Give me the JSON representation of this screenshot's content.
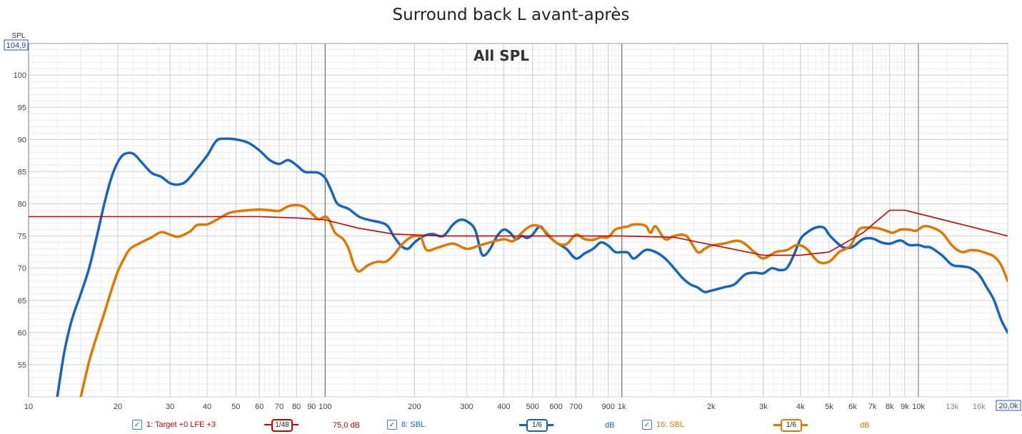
{
  "title": "Surround back L avant-après",
  "chart_data": {
    "type": "line",
    "inner_title": "All SPL",
    "ylabel": "SPL",
    "yaxis": {
      "min": 50,
      "max": 104.9,
      "top_readout": "104,9",
      "log": false
    },
    "xaxis": {
      "min": 10,
      "max": 20000,
      "log": true,
      "right_readout": "20,0k"
    },
    "yticks": [
      55,
      60,
      65,
      70,
      75,
      80,
      85,
      90,
      95,
      100
    ],
    "xticks": [
      {
        "v": 10,
        "label": "10"
      },
      {
        "v": 20,
        "label": "20"
      },
      {
        "v": 30,
        "label": "30"
      },
      {
        "v": 40,
        "label": "40"
      },
      {
        "v": 50,
        "label": "50"
      },
      {
        "v": 60,
        "label": "60"
      },
      {
        "v": 70,
        "label": "70"
      },
      {
        "v": 80,
        "label": "80"
      },
      {
        "v": 90,
        "label": "90"
      },
      {
        "v": 100,
        "label": "100"
      },
      {
        "v": 200,
        "label": "200"
      },
      {
        "v": 300,
        "label": "300"
      },
      {
        "v": 400,
        "label": "400"
      },
      {
        "v": 500,
        "label": "500"
      },
      {
        "v": 600,
        "label": "600"
      },
      {
        "v": 700,
        "label": "700"
      },
      {
        "v": 900,
        "label": "900"
      },
      {
        "v": 1000,
        "label": "1k"
      },
      {
        "v": 2000,
        "label": "2k"
      },
      {
        "v": 3000,
        "label": "3k"
      },
      {
        "v": 4000,
        "label": "4k"
      },
      {
        "v": 5000,
        "label": "5k"
      },
      {
        "v": 6000,
        "label": "6k"
      },
      {
        "v": 7000,
        "label": "7k"
      },
      {
        "v": 8000,
        "label": "8k"
      },
      {
        "v": 9000,
        "label": "9k"
      },
      {
        "v": 10000,
        "label": "10k"
      },
      {
        "v": 13000,
        "label": "13k",
        "minor": true
      },
      {
        "v": 16000,
        "label": "16k",
        "minor": true
      }
    ],
    "series": [
      {
        "name": "1: Target +0 LFE +3",
        "color": "#cc0000",
        "smoothing": "1/48",
        "offset": "75,0 dB",
        "width": 1.6,
        "points": [
          [
            10,
            78
          ],
          [
            20,
            78
          ],
          [
            40,
            78
          ],
          [
            60,
            78
          ],
          [
            80,
            77.8
          ],
          [
            100,
            77.5
          ],
          [
            130,
            76.2
          ],
          [
            170,
            75.3
          ],
          [
            250,
            75
          ],
          [
            500,
            75
          ],
          [
            1000,
            75
          ],
          [
            1500,
            74.8
          ],
          [
            3000,
            72
          ],
          [
            4000,
            72
          ],
          [
            5000,
            72.5
          ],
          [
            6500,
            75.5
          ],
          [
            8000,
            79
          ],
          [
            9000,
            79
          ],
          [
            20000,
            75
          ]
        ]
      },
      {
        "name": "8: SBL",
        "color": "#1565c0",
        "smoothing": "1/6",
        "offset": "dB",
        "width": 3.5,
        "points": [
          [
            12.5,
            50
          ],
          [
            13.2,
            57
          ],
          [
            14,
            62
          ],
          [
            15,
            66
          ],
          [
            16,
            70
          ],
          [
            17,
            75
          ],
          [
            18,
            80
          ],
          [
            19,
            84
          ],
          [
            20,
            86.5
          ],
          [
            21,
            87.7
          ],
          [
            22.5,
            87.8
          ],
          [
            24,
            86.5
          ],
          [
            26,
            84.8
          ],
          [
            28,
            84.2
          ],
          [
            30,
            83.2
          ],
          [
            32,
            83
          ],
          [
            34,
            83.5
          ],
          [
            37,
            85.5
          ],
          [
            40,
            87.5
          ],
          [
            43,
            89.8
          ],
          [
            46,
            90.1
          ],
          [
            50,
            90
          ],
          [
            55,
            89.5
          ],
          [
            60,
            88.3
          ],
          [
            65,
            86.8
          ],
          [
            70,
            86.2
          ],
          [
            75,
            86.8
          ],
          [
            80,
            86
          ],
          [
            85,
            85
          ],
          [
            90,
            84.9
          ],
          [
            95,
            84.8
          ],
          [
            100,
            84
          ],
          [
            105,
            82
          ],
          [
            110,
            80
          ],
          [
            120,
            79.2
          ],
          [
            130,
            78
          ],
          [
            140,
            77.5
          ],
          [
            160,
            76.8
          ],
          [
            170,
            75
          ],
          [
            180,
            73.5
          ],
          [
            190,
            73
          ],
          [
            200,
            74
          ],
          [
            215,
            75
          ],
          [
            230,
            75.3
          ],
          [
            250,
            75
          ],
          [
            270,
            76.8
          ],
          [
            285,
            77.5
          ],
          [
            300,
            77.3
          ],
          [
            320,
            76
          ],
          [
            335,
            72.5
          ],
          [
            345,
            72
          ],
          [
            360,
            73
          ],
          [
            380,
            75
          ],
          [
            400,
            76
          ],
          [
            420,
            75.5
          ],
          [
            440,
            74.5
          ],
          [
            460,
            75
          ],
          [
            480,
            74.7
          ],
          [
            500,
            75.2
          ],
          [
            530,
            76.5
          ],
          [
            560,
            75.2
          ],
          [
            600,
            74
          ],
          [
            650,
            73
          ],
          [
            700,
            71.5
          ],
          [
            750,
            72.3
          ],
          [
            800,
            73
          ],
          [
            850,
            74
          ],
          [
            900,
            73.5
          ],
          [
            950,
            72.5
          ],
          [
            1000,
            72.5
          ],
          [
            1050,
            72.4
          ],
          [
            1100,
            71.5
          ],
          [
            1200,
            72.8
          ],
          [
            1300,
            72.5
          ],
          [
            1400,
            71.5
          ],
          [
            1500,
            70
          ],
          [
            1600,
            68.5
          ],
          [
            1700,
            67.5
          ],
          [
            1800,
            67
          ],
          [
            1900,
            66.3
          ],
          [
            2000,
            66.5
          ],
          [
            2200,
            67
          ],
          [
            2400,
            67.5
          ],
          [
            2600,
            69
          ],
          [
            2800,
            69.3
          ],
          [
            3000,
            69.2
          ],
          [
            3200,
            70
          ],
          [
            3400,
            69.7
          ],
          [
            3600,
            70
          ],
          [
            3800,
            72
          ],
          [
            4000,
            74.5
          ],
          [
            4200,
            75.5
          ],
          [
            4500,
            76.3
          ],
          [
            4800,
            76.3
          ],
          [
            5000,
            75.2
          ],
          [
            5300,
            74
          ],
          [
            5600,
            73.2
          ],
          [
            6000,
            73.3
          ],
          [
            6500,
            74.5
          ],
          [
            7000,
            74.6
          ],
          [
            7500,
            74
          ],
          [
            8000,
            73.8
          ],
          [
            8700,
            74.3
          ],
          [
            9300,
            73.6
          ],
          [
            10000,
            73.6
          ],
          [
            10500,
            73.3
          ],
          [
            11000,
            73.2
          ],
          [
            12000,
            72
          ],
          [
            13000,
            70.5
          ],
          [
            14000,
            70.3
          ],
          [
            15000,
            70
          ],
          [
            16000,
            69
          ],
          [
            17000,
            67
          ],
          [
            18000,
            65
          ],
          [
            19000,
            62
          ],
          [
            20000,
            60
          ]
        ]
      },
      {
        "name": "16: SBL",
        "color": "#e07800",
        "smoothing": "1/6",
        "offset": "dB",
        "width": 3.5,
        "points": [
          [
            15,
            50
          ],
          [
            16,
            55.5
          ],
          [
            17,
            59.5
          ],
          [
            18,
            63
          ],
          [
            19,
            66.5
          ],
          [
            20,
            69.5
          ],
          [
            21,
            71.5
          ],
          [
            22,
            73
          ],
          [
            24,
            74
          ],
          [
            26,
            74.8
          ],
          [
            28,
            75.6
          ],
          [
            30,
            75.2
          ],
          [
            32,
            74.9
          ],
          [
            35,
            75.7
          ],
          [
            37,
            76.7
          ],
          [
            40,
            76.8
          ],
          [
            43,
            77.5
          ],
          [
            47,
            78.5
          ],
          [
            50,
            78.8
          ],
          [
            55,
            79
          ],
          [
            60,
            79.1
          ],
          [
            65,
            79
          ],
          [
            70,
            78.9
          ],
          [
            75,
            79.6
          ],
          [
            80,
            79.8
          ],
          [
            85,
            79.5
          ],
          [
            90,
            78.5
          ],
          [
            95,
            77.6
          ],
          [
            100,
            78
          ],
          [
            103,
            77.5
          ],
          [
            108,
            75.5
          ],
          [
            115,
            74.5
          ],
          [
            120,
            73
          ],
          [
            125,
            70.5
          ],
          [
            130,
            69.5
          ],
          [
            140,
            70.5
          ],
          [
            150,
            71
          ],
          [
            160,
            71
          ],
          [
            170,
            72
          ],
          [
            180,
            73.5
          ],
          [
            190,
            74.5
          ],
          [
            200,
            75
          ],
          [
            210,
            74.8
          ],
          [
            220,
            72.8
          ],
          [
            240,
            73.2
          ],
          [
            270,
            73.8
          ],
          [
            300,
            73
          ],
          [
            330,
            73.5
          ],
          [
            360,
            74
          ],
          [
            400,
            74.5
          ],
          [
            430,
            74.2
          ],
          [
            460,
            75.5
          ],
          [
            490,
            76.5
          ],
          [
            520,
            76.6
          ],
          [
            550,
            75.8
          ],
          [
            600,
            74
          ],
          [
            650,
            73.7
          ],
          [
            700,
            75.2
          ],
          [
            750,
            74.5
          ],
          [
            800,
            74.4
          ],
          [
            850,
            74.8
          ],
          [
            900,
            74.8
          ],
          [
            950,
            76
          ],
          [
            1000,
            76.3
          ],
          [
            1050,
            76.5
          ],
          [
            1100,
            76.8
          ],
          [
            1200,
            76.6
          ],
          [
            1250,
            75.5
          ],
          [
            1300,
            76.5
          ],
          [
            1400,
            74.5
          ],
          [
            1500,
            75
          ],
          [
            1650,
            75
          ],
          [
            1800,
            72.5
          ],
          [
            1900,
            73
          ],
          [
            2000,
            73.5
          ],
          [
            2200,
            73.8
          ],
          [
            2500,
            74.2
          ],
          [
            2800,
            72.5
          ],
          [
            3000,
            71.5
          ],
          [
            3300,
            72.5
          ],
          [
            3600,
            72.8
          ],
          [
            3900,
            73.6
          ],
          [
            4200,
            73
          ],
          [
            4600,
            71
          ],
          [
            5000,
            71
          ],
          [
            5400,
            72.5
          ],
          [
            5900,
            73.5
          ],
          [
            6300,
            76
          ],
          [
            6800,
            76.3
          ],
          [
            7300,
            76.2
          ],
          [
            7800,
            75.8
          ],
          [
            8200,
            75.5
          ],
          [
            8700,
            76
          ],
          [
            9300,
            76
          ],
          [
            9800,
            75.8
          ],
          [
            10400,
            76.5
          ],
          [
            11000,
            76.4
          ],
          [
            12000,
            75.5
          ],
          [
            13000,
            73.5
          ],
          [
            14000,
            72.5
          ],
          [
            15000,
            72.8
          ],
          [
            16000,
            72.7
          ],
          [
            17000,
            72.3
          ],
          [
            18000,
            71.8
          ],
          [
            19000,
            70.5
          ],
          [
            20000,
            68
          ]
        ]
      }
    ]
  }
}
